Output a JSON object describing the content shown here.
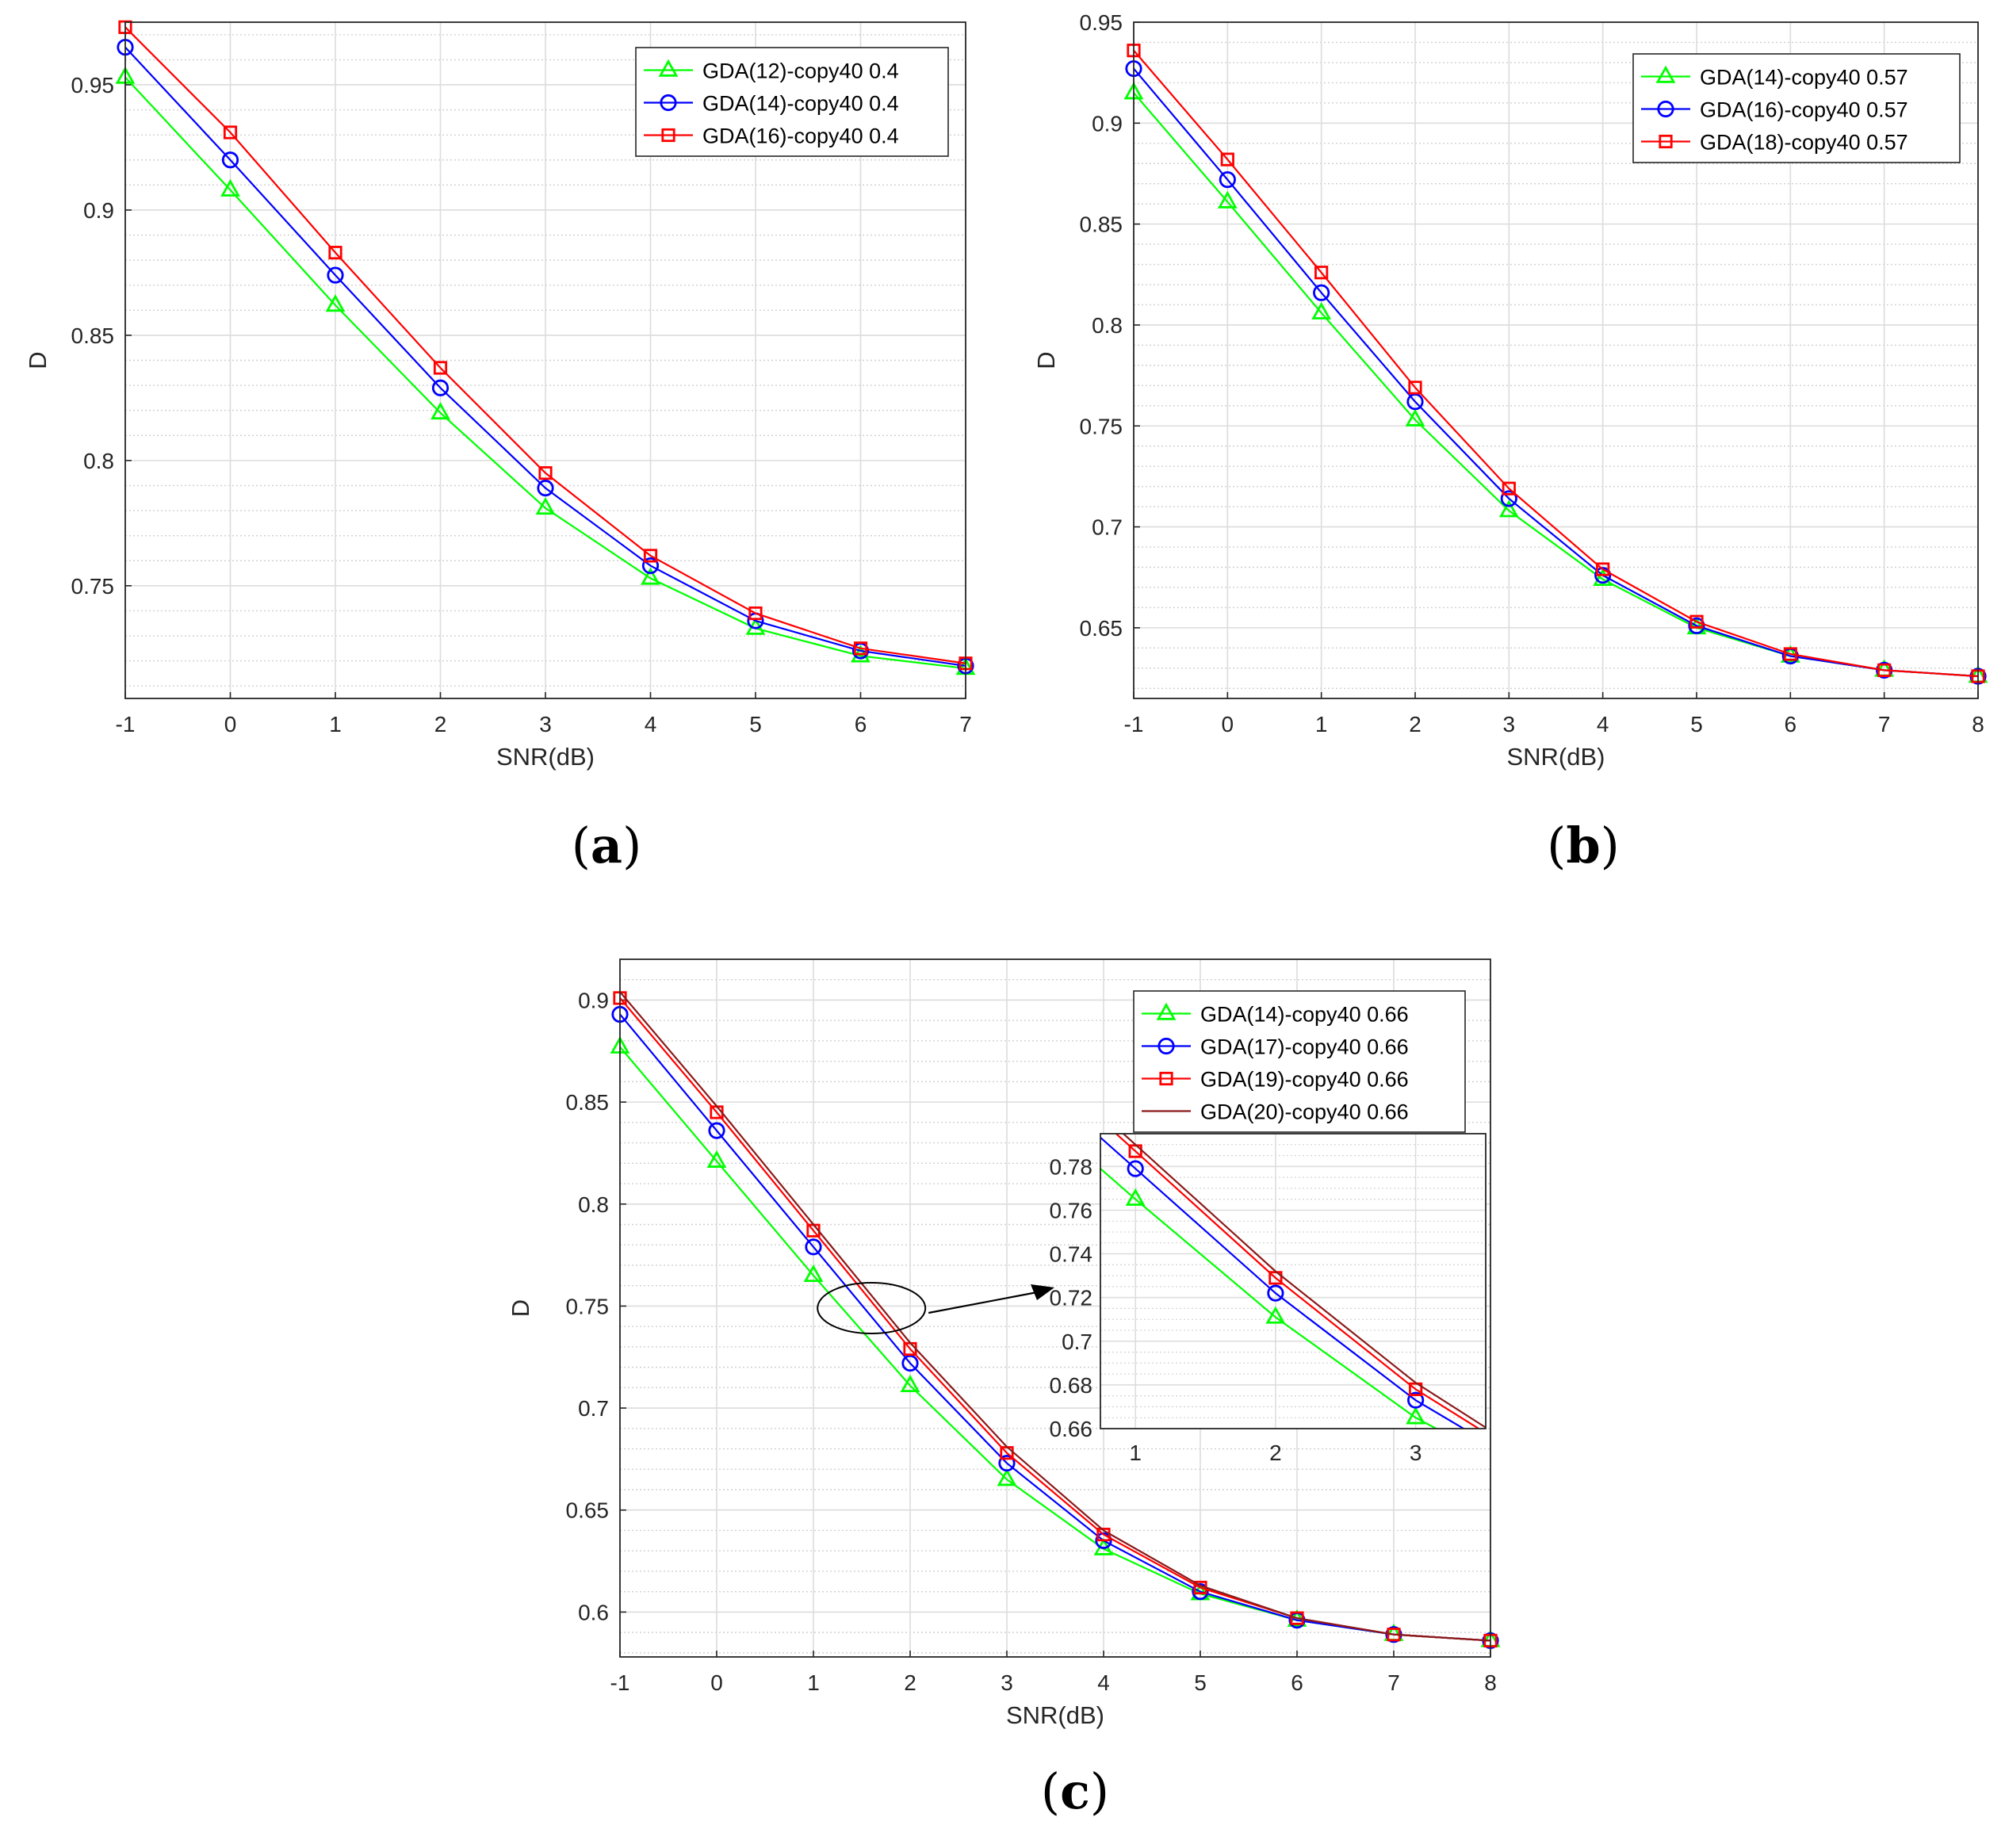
{
  "colors": {
    "green": "#00ff00",
    "blue": "#0000ff",
    "red": "#ff0000",
    "darkred": "#8b1a1a"
  },
  "captions": [
    "a",
    "b",
    "c"
  ],
  "chart_data": [
    {
      "type": "line",
      "caption": "a",
      "xlabel": "SNR(dB)",
      "ylabel": "D",
      "xlim": [
        -1,
        7
      ],
      "ylim": [
        0.705,
        0.975
      ],
      "xticks": [
        -1,
        0,
        1,
        2,
        3,
        4,
        5,
        6,
        7
      ],
      "yticks": [
        0.75,
        0.8,
        0.85,
        0.9,
        0.95
      ],
      "grid": true,
      "legend_position": "top-right",
      "x": [
        -1,
        0,
        1,
        2,
        3,
        4,
        5,
        6,
        7
      ],
      "series": [
        {
          "name": "GDA(12)-copy40 0.4",
          "color": "green",
          "marker": "triangle",
          "values": [
            0.953,
            0.908,
            0.862,
            0.819,
            0.781,
            0.753,
            0.733,
            0.722,
            0.717
          ]
        },
        {
          "name": "GDA(14)-copy40 0.4",
          "color": "blue",
          "marker": "circle",
          "values": [
            0.965,
            0.92,
            0.874,
            0.829,
            0.789,
            0.758,
            0.736,
            0.724,
            0.718
          ]
        },
        {
          "name": "GDA(16)-copy40 0.4",
          "color": "red",
          "marker": "square",
          "values": [
            0.973,
            0.931,
            0.883,
            0.837,
            0.795,
            0.762,
            0.739,
            0.725,
            0.719
          ]
        }
      ]
    },
    {
      "type": "line",
      "caption": "b",
      "xlabel": "SNR(dB)",
      "ylabel": "D",
      "xlim": [
        -1,
        8
      ],
      "ylim": [
        0.615,
        0.95
      ],
      "xticks": [
        -1,
        0,
        1,
        2,
        3,
        4,
        5,
        6,
        7,
        8
      ],
      "yticks": [
        0.65,
        0.7,
        0.75,
        0.8,
        0.85,
        0.9,
        0.95
      ],
      "grid": true,
      "legend_position": "top-right",
      "x": [
        -1,
        0,
        1,
        2,
        3,
        4,
        5,
        6,
        7,
        8
      ],
      "series": [
        {
          "name": "GDA(14)-copy40 0.57",
          "color": "green",
          "marker": "triangle",
          "values": [
            0.915,
            0.861,
            0.806,
            0.753,
            0.708,
            0.674,
            0.65,
            0.636,
            0.629,
            0.626
          ]
        },
        {
          "name": "GDA(16)-copy40 0.57",
          "color": "blue",
          "marker": "circle",
          "values": [
            0.927,
            0.872,
            0.816,
            0.762,
            0.714,
            0.676,
            0.651,
            0.636,
            0.629,
            0.626
          ]
        },
        {
          "name": "GDA(18)-copy40 0.57",
          "color": "red",
          "marker": "square",
          "values": [
            0.936,
            0.882,
            0.826,
            0.769,
            0.719,
            0.679,
            0.653,
            0.637,
            0.629,
            0.626
          ]
        }
      ]
    },
    {
      "type": "line",
      "caption": "c",
      "xlabel": "SNR(dB)",
      "ylabel": "D",
      "xlim": [
        -1,
        8
      ],
      "ylim": [
        0.578,
        0.92
      ],
      "xticks": [
        -1,
        0,
        1,
        2,
        3,
        4,
        5,
        6,
        7,
        8
      ],
      "yticks": [
        0.6,
        0.65,
        0.7,
        0.75,
        0.8,
        0.85,
        0.9
      ],
      "grid": true,
      "legend_position": "top-right",
      "x": [
        -1,
        0,
        1,
        2,
        3,
        4,
        5,
        6,
        7,
        8
      ],
      "series": [
        {
          "name": "GDA(14)-copy40 0.66",
          "color": "green",
          "marker": "triangle",
          "values": [
            0.877,
            0.821,
            0.765,
            0.711,
            0.665,
            0.631,
            0.609,
            0.596,
            0.589,
            0.586
          ]
        },
        {
          "name": "GDA(17)-copy40 0.66",
          "color": "blue",
          "marker": "circle",
          "values": [
            0.893,
            0.836,
            0.779,
            0.722,
            0.673,
            0.635,
            0.61,
            0.596,
            0.589,
            0.586
          ]
        },
        {
          "name": "GDA(19)-copy40 0.66",
          "color": "red",
          "marker": "square",
          "values": [
            0.901,
            0.845,
            0.787,
            0.729,
            0.678,
            0.638,
            0.612,
            0.597,
            0.589,
            0.586
          ]
        },
        {
          "name": "GDA(20)-copy40 0.66",
          "color": "darkred",
          "marker": "none",
          "values": [
            0.904,
            0.848,
            0.79,
            0.732,
            0.681,
            0.64,
            0.613,
            0.597,
            0.589,
            0.586
          ]
        }
      ],
      "inset": {
        "xlim": [
          0.75,
          3.5
        ],
        "ylim": [
          0.66,
          0.795
        ],
        "xticks": [
          1,
          2,
          3
        ],
        "yticks": [
          0.66,
          0.68,
          0.7,
          0.72,
          0.74,
          0.76,
          0.78
        ],
        "annotation": "ellipse-with-arrow"
      }
    }
  ]
}
